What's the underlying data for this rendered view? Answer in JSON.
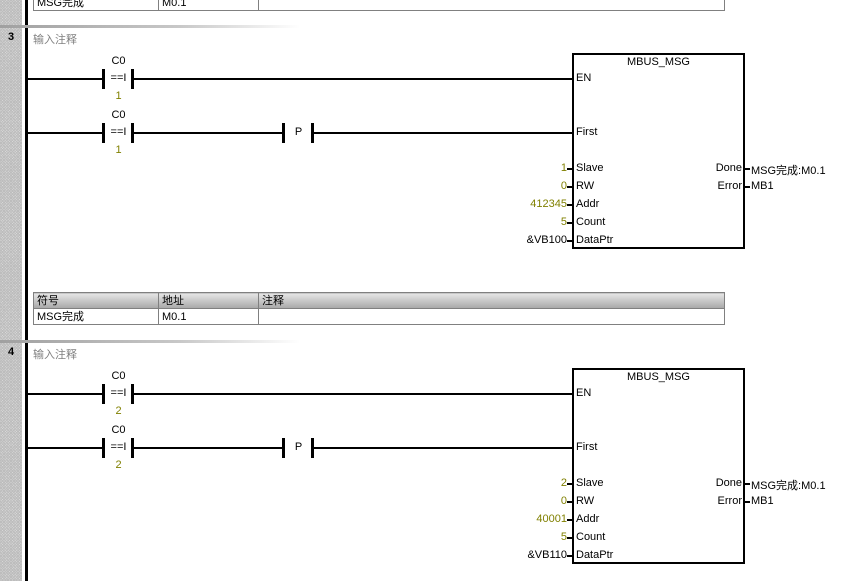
{
  "colors": {
    "constant": "#808000",
    "comment": "#808080",
    "rail": "#000000"
  },
  "top_table": {
    "row": [
      "MSG完成",
      "M0.1",
      ""
    ]
  },
  "networks": [
    {
      "number": "3",
      "comment": "输入注释",
      "rung1": {
        "contact_name": "C0",
        "contact_op": "==I",
        "contact_value": "1"
      },
      "rung2": {
        "contact_name": "C0",
        "contact_op": "==I",
        "contact_value": "1",
        "edge": "P"
      },
      "block": {
        "title": "MBUS_MSG",
        "inputs": [
          {
            "pin": "EN",
            "value": ""
          },
          {
            "pin": "First",
            "value": ""
          },
          {
            "pin": "Slave",
            "value": "1"
          },
          {
            "pin": "RW",
            "value": "0"
          },
          {
            "pin": "Addr",
            "value": "412345"
          },
          {
            "pin": "Count",
            "value": "5"
          },
          {
            "pin": "DataPtr",
            "value": "&VB100"
          }
        ],
        "outputs": [
          {
            "pin": "Done",
            "value": "MSG完成:M0.1"
          },
          {
            "pin": "Error",
            "value": "MB1"
          }
        ]
      },
      "symbol_table": {
        "headers": [
          "符号",
          "地址",
          "注释"
        ],
        "rows": [
          [
            "MSG完成",
            "M0.1",
            ""
          ]
        ]
      }
    },
    {
      "number": "4",
      "comment": "输入注释",
      "rung1": {
        "contact_name": "C0",
        "contact_op": "==I",
        "contact_value": "2"
      },
      "rung2": {
        "contact_name": "C0",
        "contact_op": "==I",
        "contact_value": "2",
        "edge": "P"
      },
      "block": {
        "title": "MBUS_MSG",
        "inputs": [
          {
            "pin": "EN",
            "value": ""
          },
          {
            "pin": "First",
            "value": ""
          },
          {
            "pin": "Slave",
            "value": "2"
          },
          {
            "pin": "RW",
            "value": "0"
          },
          {
            "pin": "Addr",
            "value": "40001"
          },
          {
            "pin": "Count",
            "value": "5"
          },
          {
            "pin": "DataPtr",
            "value": "&VB110"
          }
        ],
        "outputs": [
          {
            "pin": "Done",
            "value": "MSG完成:M0.1"
          },
          {
            "pin": "Error",
            "value": "MB1"
          }
        ]
      }
    }
  ]
}
